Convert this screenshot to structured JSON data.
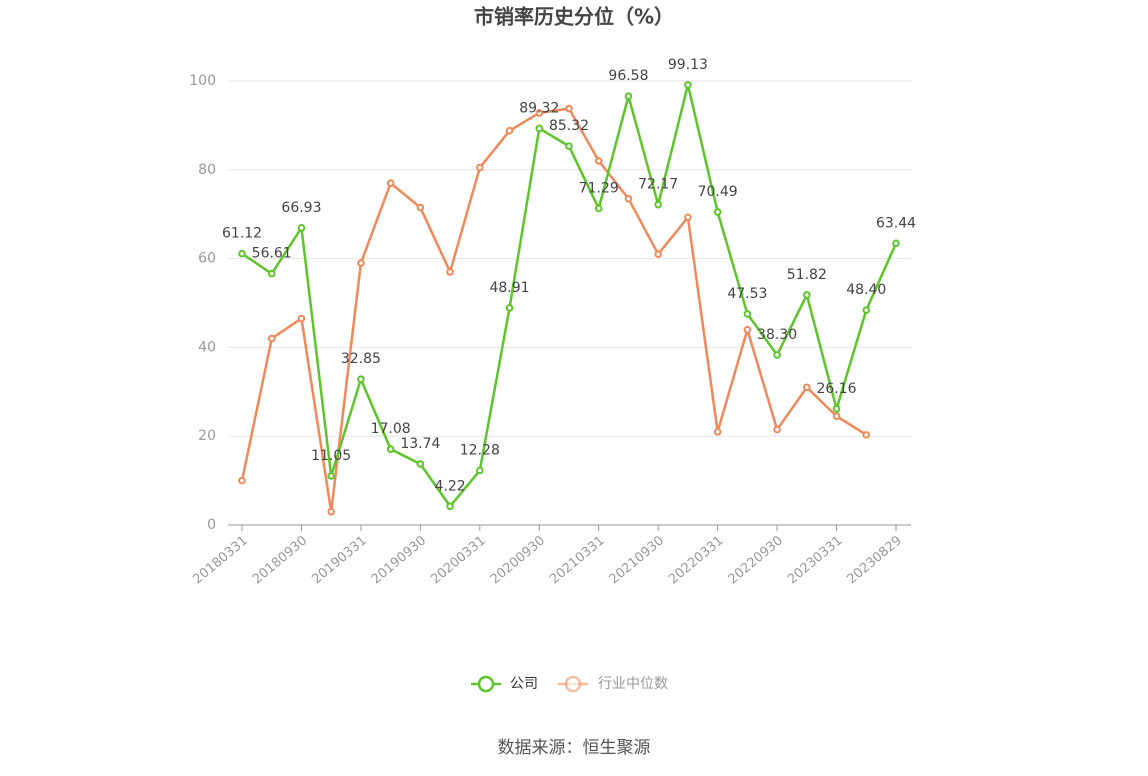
{
  "chart_data": {
    "type": "line",
    "title": "市销率历史分位（%）",
    "categories": [
      "20180331",
      null,
      "20180930",
      null,
      "20190331",
      null,
      "20190930",
      null,
      "20200331",
      null,
      "20200930",
      null,
      "20210331",
      null,
      "20210930",
      null,
      "20220331",
      null,
      "20220930",
      null,
      "20230331",
      null,
      "20230829"
    ],
    "series": [
      {
        "name": "公司",
        "color": "#5cc52a",
        "values": [
          61.12,
          56.61,
          66.93,
          11.05,
          32.85,
          17.08,
          13.74,
          4.22,
          12.28,
          48.91,
          89.32,
          85.32,
          71.29,
          96.58,
          72.17,
          99.13,
          70.49,
          47.53,
          38.3,
          51.82,
          26.16,
          48.4,
          63.44
        ],
        "value_labels": [
          "61.12",
          "56.61",
          "66.93",
          "11.05",
          "32.85",
          "17.08",
          "13.74",
          "4.22",
          "12.28",
          "48.91",
          "89.32",
          "85.32",
          "71.29",
          "96.58",
          "72.17",
          "99.13",
          "70.49",
          "47.53",
          "38.30",
          "51.82",
          "26.16",
          "48.40",
          "63.44"
        ]
      },
      {
        "name": "行业中位数",
        "color": "#f0895a",
        "values": [
          10,
          42,
          46.5,
          3,
          59,
          77,
          71.5,
          57,
          80.5,
          88.8,
          92.8,
          93.8,
          82,
          73.5,
          61,
          69.3,
          21,
          44,
          21.5,
          31,
          24.5,
          20.3,
          null
        ]
      }
    ],
    "ylim": [
      0,
      100
    ],
    "yticks": [
      0,
      20,
      40,
      60,
      80,
      100
    ],
    "grid": true,
    "source": "数据来源：恒生聚源"
  }
}
